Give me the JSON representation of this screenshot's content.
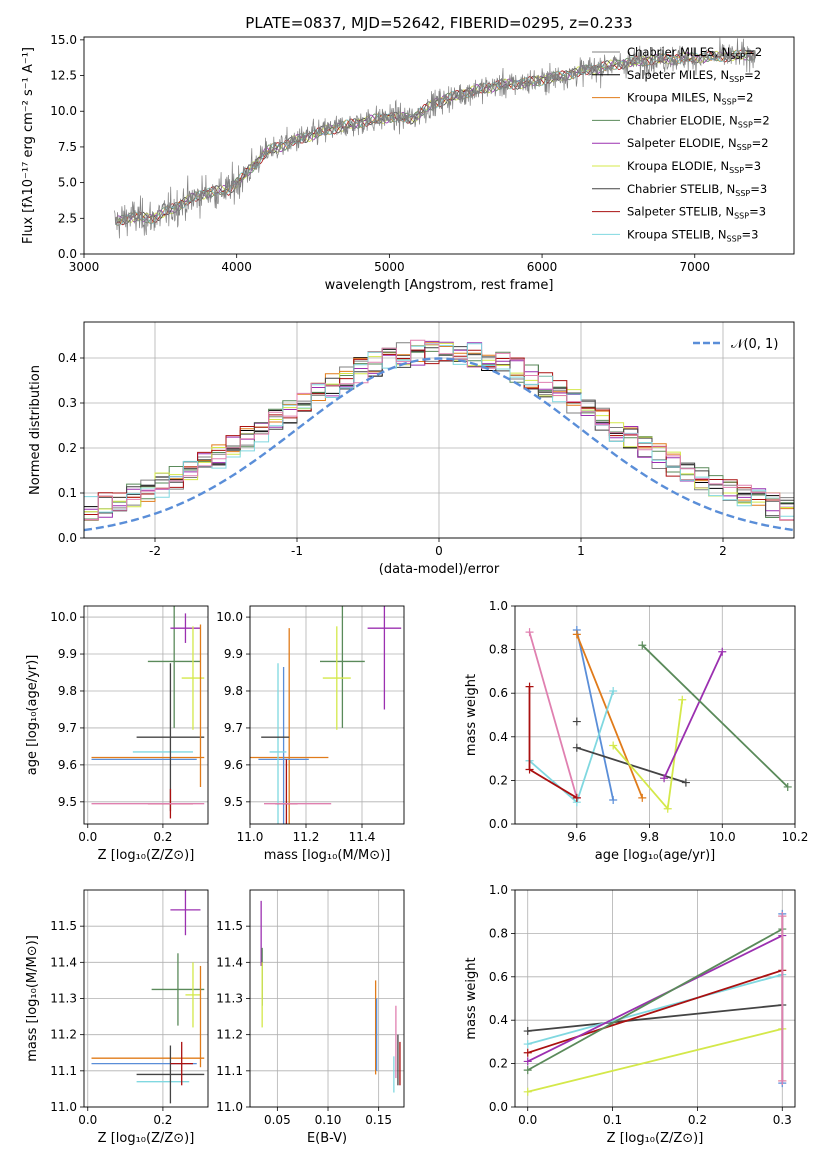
{
  "chart_data": [
    {
      "id": "spectrum",
      "type": "line",
      "title": "PLATE=0837, MJD=52642, FIBERID=0295, z=0.233",
      "xlabel": "wavelength [Angstrom, rest frame]",
      "ylabel": "Flux [fλ10⁻¹⁷ erg cm⁻² s⁻¹ A⁻¹]",
      "xlim": [
        3000,
        7650
      ],
      "ylim": [
        0,
        15.2
      ],
      "xticks": [
        3000,
        4000,
        5000,
        6000,
        7000
      ],
      "yticks": [
        0.0,
        2.5,
        5.0,
        7.5,
        10.0,
        12.5,
        15.0
      ],
      "legend_position": "right",
      "continuum": {
        "x": [
          3200,
          3300,
          3450,
          3550,
          3650,
          3800,
          3950,
          4050,
          4200,
          4400,
          4600,
          4800,
          5000,
          5150,
          5300,
          5500,
          5700,
          5900,
          6100,
          6300,
          6500,
          6700,
          6900,
          7100,
          7300,
          7400
        ],
        "y": [
          2.2,
          2.6,
          2.5,
          3.0,
          3.6,
          4.3,
          4.5,
          5.5,
          7.2,
          8.0,
          8.7,
          9.2,
          9.6,
          9.5,
          10.6,
          11.3,
          11.8,
          12.0,
          12.4,
          12.9,
          13.3,
          13.6,
          13.7,
          13.8,
          13.9,
          14.0
        ]
      },
      "legend": [
        {
          "name": "Chabrier MILES, N",
          "sub": "SSP",
          "suffix": "=2",
          "color": "#808080"
        },
        {
          "name": "Salpeter MILES, N",
          "sub": "SSP",
          "suffix": "=2",
          "color": "#000000"
        },
        {
          "name": "Kroupa MILES, N",
          "sub": "SSP",
          "suffix": "=2",
          "color": "#e07b1a"
        },
        {
          "name": "Chabrier ELODIE, N",
          "sub": "SSP",
          "suffix": "=2",
          "color": "#5a8a5a"
        },
        {
          "name": "Salpeter ELODIE, N",
          "sub": "SSP",
          "suffix": "=2",
          "color": "#9b30b0"
        },
        {
          "name": "Kroupa ELODIE, N",
          "sub": "SSP",
          "suffix": "=3",
          "color": "#d4e84a"
        },
        {
          "name": "Chabrier STELIB, N",
          "sub": "SSP",
          "suffix": "=3",
          "color": "#444444"
        },
        {
          "name": "Salpeter STELIB, N",
          "sub": "SSP",
          "suffix": "=3",
          "color": "#aa1010"
        },
        {
          "name": "Kroupa STELIB, N",
          "sub": "SSP",
          "suffix": "=3",
          "color": "#80d8e0"
        }
      ]
    },
    {
      "id": "residuals",
      "type": "line",
      "xlabel": "(data-model)/error",
      "ylabel": "Normed distribution",
      "xlim": [
        -2.5,
        2.5
      ],
      "ylim": [
        0,
        0.48
      ],
      "xticks": [
        -2,
        -1,
        0,
        1,
        2
      ],
      "yticks": [
        0.0,
        0.1,
        0.2,
        0.3,
        0.4
      ],
      "grid": true,
      "legend_position": "top-right",
      "legend_label": "𝒩(0, 1)",
      "reference_curve": {
        "name": "normal",
        "mean": 0,
        "sigma": 1,
        "color": "#5a8ed8"
      },
      "histogram_colors": [
        "#808080",
        "#000000",
        "#e07b1a",
        "#5a8a5a",
        "#9b30b0",
        "#d4e84a",
        "#444444",
        "#aa1010",
        "#80d8e0",
        "#e080b0"
      ]
    },
    {
      "id": "age_vs_z",
      "type": "scatter",
      "xlabel": "Z [log₁₀(Z/Z⊙)]",
      "ylabel": "age  [log₁₀(age/yr)]",
      "xlim": [
        -0.01,
        0.32
      ],
      "ylim": [
        9.44,
        10.03
      ],
      "xticks": [
        0.0,
        0.2
      ],
      "yticks": [
        9.5,
        9.6,
        9.7,
        9.8,
        9.9,
        10.0
      ],
      "grid": true,
      "points": [
        {
          "x": 0.16,
          "y": 9.62,
          "xerr": 0.15,
          "yerr": 0.0,
          "color": "#e07b1a"
        },
        {
          "x": 0.15,
          "y": 9.615,
          "xerr": 0.14,
          "yerr": 0.0,
          "color": "#5a8ed8"
        },
        {
          "x": 0.2,
          "y": 9.635,
          "xerr": 0.08,
          "yerr": 0.0,
          "color": "#80d8e0"
        },
        {
          "x": 0.22,
          "y": 9.675,
          "xerr": 0.09,
          "yerr": 0.2,
          "color": "#444444"
        },
        {
          "x": 0.23,
          "y": 9.88,
          "xerr": 0.07,
          "yerr": 0.18,
          "color": "#5a8a5a"
        },
        {
          "x": 0.26,
          "y": 9.97,
          "xerr": 0.04,
          "yerr": 0.04,
          "color": "#9b30b0"
        },
        {
          "x": 0.28,
          "y": 9.835,
          "xerr": 0.03,
          "yerr": 0.14,
          "color": "#d4e84a"
        },
        {
          "x": 0.22,
          "y": 9.495,
          "xerr": 0.06,
          "yerr": 0.04,
          "color": "#aa1010"
        },
        {
          "x": 0.16,
          "y": 9.495,
          "xerr": 0.15,
          "yerr": 0.0,
          "color": "#e080b0"
        },
        {
          "x": 0.3,
          "y": 9.76,
          "xerr": 0.0,
          "yerr": 0.22,
          "color": "#e07b1a"
        }
      ]
    },
    {
      "id": "age_vs_mass",
      "type": "scatter",
      "xlabel": "mass [log₁₀(M/M⊙)]",
      "ylabel": "",
      "xlim": [
        11.0,
        11.55
      ],
      "ylim": [
        9.44,
        10.03
      ],
      "xticks": [
        11.0,
        11.2,
        11.4
      ],
      "yticks": [
        9.5,
        9.6,
        9.7,
        9.8,
        9.9,
        10.0
      ],
      "grid": true,
      "points": [
        {
          "x": 11.14,
          "y": 9.62,
          "xerr": 0.14,
          "yerr": 0.35,
          "color": "#e07b1a"
        },
        {
          "x": 11.12,
          "y": 9.615,
          "xerr": 0.09,
          "yerr": 0.25,
          "color": "#5a8ed8"
        },
        {
          "x": 11.1,
          "y": 9.635,
          "xerr": 0.03,
          "yerr": 0.24,
          "color": "#80d8e0"
        },
        {
          "x": 11.09,
          "y": 9.675,
          "xerr": 0.05,
          "yerr": 0.0,
          "color": "#444444"
        },
        {
          "x": 11.33,
          "y": 9.88,
          "xerr": 0.08,
          "yerr": 0.18,
          "color": "#5a8a5a"
        },
        {
          "x": 11.48,
          "y": 9.97,
          "xerr": 0.06,
          "yerr": 0.22,
          "color": "#9b30b0"
        },
        {
          "x": 11.31,
          "y": 9.835,
          "xerr": 0.05,
          "yerr": 0.14,
          "color": "#d4e84a"
        },
        {
          "x": 11.13,
          "y": 9.495,
          "xerr": 0.04,
          "yerr": 0.12,
          "color": "#aa1010"
        },
        {
          "x": 11.17,
          "y": 9.495,
          "xerr": 0.12,
          "yerr": 0.0,
          "color": "#e080b0"
        }
      ]
    },
    {
      "id": "weight_vs_age",
      "type": "line",
      "xlabel": "age  [log₁₀(age/yr)]",
      "ylabel": "mass weight",
      "xlim": [
        9.43,
        10.2
      ],
      "ylim": [
        0,
        1.0
      ],
      "xticks": [
        9.6,
        9.8,
        10.0,
        10.2
      ],
      "yticks": [
        0.0,
        0.2,
        0.4,
        0.6,
        0.8,
        1.0
      ],
      "grid": true,
      "series": [
        {
          "color": "#e080b0",
          "x": [
            9.47,
            9.6
          ],
          "y": [
            0.88,
            0.12
          ]
        },
        {
          "color": "#5a8ed8",
          "x": [
            9.6,
            9.7
          ],
          "y": [
            0.89,
            0.11
          ]
        },
        {
          "color": "#e07b1a",
          "x": [
            9.6,
            9.78
          ],
          "y": [
            0.87,
            0.12
          ]
        },
        {
          "color": "#80d8e0",
          "x": [
            9.47,
            9.6,
            9.7
          ],
          "y": [
            0.29,
            0.1,
            0.61
          ]
        },
        {
          "color": "#444444",
          "x": [
            9.6,
            9.9
          ],
          "y": [
            0.35,
            0.19
          ]
        },
        {
          "color": "#aa1010",
          "x": [
            9.47,
            9.47,
            9.6
          ],
          "y": [
            0.63,
            0.25,
            0.12
          ]
        },
        {
          "color": "#d4e84a",
          "x": [
            9.7,
            9.85,
            9.89
          ],
          "y": [
            0.36,
            0.07,
            0.57
          ]
        },
        {
          "color": "#9b30b0",
          "x": [
            9.84,
            10.0
          ],
          "y": [
            0.21,
            0.79
          ]
        },
        {
          "color": "#5a8a5a",
          "x": [
            9.78,
            10.18
          ],
          "y": [
            0.82,
            0.17
          ]
        }
      ],
      "markers": [
        {
          "x": 9.6,
          "y": 0.47,
          "color": "#444444"
        }
      ]
    },
    {
      "id": "mass_vs_z",
      "type": "scatter",
      "xlabel": "Z [log₁₀(Z/Z⊙)]",
      "ylabel": "mass [log₁₀(M/M⊙)]",
      "xlim": [
        -0.01,
        0.32
      ],
      "ylim": [
        11.0,
        11.6
      ],
      "xticks": [
        0.0,
        0.2
      ],
      "yticks": [
        11.0,
        11.1,
        11.2,
        11.3,
        11.4,
        11.5
      ],
      "grid": true,
      "points": [
        {
          "x": 0.16,
          "y": 11.135,
          "xerr": 0.15,
          "yerr": 0.0,
          "color": "#e07b1a"
        },
        {
          "x": 0.15,
          "y": 11.12,
          "xerr": 0.14,
          "yerr": 0.0,
          "color": "#5a8ed8"
        },
        {
          "x": 0.2,
          "y": 11.07,
          "xerr": 0.07,
          "yerr": 0.0,
          "color": "#80d8e0"
        },
        {
          "x": 0.22,
          "y": 11.09,
          "xerr": 0.09,
          "yerr": 0.08,
          "color": "#444444"
        },
        {
          "x": 0.24,
          "y": 11.325,
          "xerr": 0.07,
          "yerr": 0.1,
          "color": "#5a8a5a"
        },
        {
          "x": 0.26,
          "y": 11.545,
          "xerr": 0.04,
          "yerr": 0.07,
          "color": "#9b30b0"
        },
        {
          "x": 0.28,
          "y": 11.31,
          "xerr": 0.02,
          "yerr": 0.09,
          "color": "#d4e84a"
        },
        {
          "x": 0.25,
          "y": 11.12,
          "xerr": 0.03,
          "yerr": 0.06,
          "color": "#aa1010"
        },
        {
          "x": 0.3,
          "y": 11.25,
          "xerr": 0.0,
          "yerr": 0.14,
          "color": "#e07b1a"
        }
      ]
    },
    {
      "id": "mass_vs_ebv",
      "type": "scatter",
      "xlabel": "E(B-V)",
      "ylabel": "",
      "xlim": [
        0.023,
        0.175
      ],
      "ylim": [
        11.0,
        11.6
      ],
      "xticks": [
        0.05,
        0.1,
        0.15
      ],
      "yticks": [
        11.0,
        11.1,
        11.2,
        11.3,
        11.4,
        11.5
      ],
      "grid": true,
      "points": [
        {
          "x": 0.034,
          "y": 11.48,
          "xerr": 0.0,
          "yerr": 0.09,
          "color": "#9b30b0"
        },
        {
          "x": 0.035,
          "y": 11.36,
          "xerr": 0.0,
          "yerr": 0.08,
          "color": "#5a8a5a"
        },
        {
          "x": 0.035,
          "y": 11.31,
          "xerr": 0.0,
          "yerr": 0.09,
          "color": "#d4e84a"
        },
        {
          "x": 0.147,
          "y": 11.22,
          "xerr": 0.0,
          "yerr": 0.13,
          "color": "#e07b1a"
        },
        {
          "x": 0.148,
          "y": 11.2,
          "xerr": 0.0,
          "yerr": 0.1,
          "color": "#5a8ed8"
        },
        {
          "x": 0.167,
          "y": 11.18,
          "xerr": 0.0,
          "yerr": 0.1,
          "color": "#e080b0"
        },
        {
          "x": 0.169,
          "y": 11.13,
          "xerr": 0.0,
          "yerr": 0.07,
          "color": "#444444"
        },
        {
          "x": 0.171,
          "y": 11.12,
          "xerr": 0.0,
          "yerr": 0.06,
          "color": "#aa1010"
        },
        {
          "x": 0.165,
          "y": 11.09,
          "xerr": 0.0,
          "yerr": 0.05,
          "color": "#80d8e0"
        }
      ]
    },
    {
      "id": "weight_vs_z",
      "type": "line",
      "xlabel": "Z [log₁₀(Z/Z⊙)]",
      "ylabel": "mass weight",
      "xlim": [
        -0.015,
        0.315
      ],
      "ylim": [
        0,
        1.0
      ],
      "xticks": [
        0.0,
        0.1,
        0.2,
        0.3
      ],
      "yticks": [
        0.0,
        0.2,
        0.4,
        0.6,
        0.8,
        1.0
      ],
      "grid": true,
      "series": [
        {
          "color": "#444444",
          "x": [
            0.0,
            0.3
          ],
          "y": [
            0.35,
            0.47
          ]
        },
        {
          "color": "#d4e84a",
          "x": [
            0.0,
            0.3
          ],
          "y": [
            0.07,
            0.36
          ]
        },
        {
          "color": "#80d8e0",
          "x": [
            0.0,
            0.3
          ],
          "y": [
            0.29,
            0.61
          ]
        },
        {
          "color": "#aa1010",
          "x": [
            0.0,
            0.3
          ],
          "y": [
            0.25,
            0.63
          ]
        },
        {
          "color": "#9b30b0",
          "x": [
            0.0,
            0.3
          ],
          "y": [
            0.21,
            0.79
          ]
        },
        {
          "color": "#5a8a5a",
          "x": [
            0.0,
            0.3
          ],
          "y": [
            0.17,
            0.82
          ]
        },
        {
          "color": "#e07b1a",
          "x": [
            0.3,
            0.3
          ],
          "y": [
            0.12,
            0.88
          ]
        },
        {
          "color": "#5a8ed8",
          "x": [
            0.3,
            0.3
          ],
          "y": [
            0.11,
            0.89
          ]
        },
        {
          "color": "#e080b0",
          "x": [
            0.3,
            0.3
          ],
          "y": [
            0.12,
            0.88
          ]
        }
      ]
    }
  ]
}
